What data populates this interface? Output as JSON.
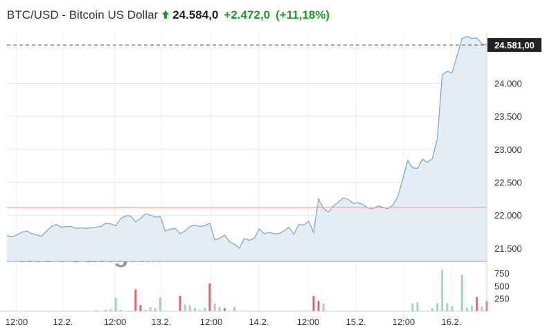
{
  "header": {
    "title": "BTC/USD - Bitcoin US Dollar",
    "last": "24.584,0",
    "change": "+2.472,0",
    "change_pct": "(+11,18%)",
    "direction_icon": "up-arrow-icon"
  },
  "price_marker": "24.581,00",
  "watermark": {
    "brand": "Investing",
    "suffix": ".com"
  },
  "colors": {
    "up": "#1a9d2e",
    "line": "#7fa8c9",
    "area": "#e3edf6",
    "vol_up": "#a6d6b1",
    "vol_down": "#e06767",
    "prev_close": "#f2a8a8"
  },
  "chart_data": {
    "type": "area",
    "y_axis": {
      "ticks": [
        "21.500",
        "22.000",
        "22.500",
        "23.000",
        "23.500",
        "24.000"
      ],
      "ylim": [
        21300,
        24760
      ]
    },
    "prev_close": 22112,
    "last_value": 24581,
    "x_ticks": [
      "12:00",
      "12.2.",
      "12:00",
      "13.2.",
      "12:00",
      "14.2.",
      "12:00",
      "15.2.",
      "12:00",
      "16.2."
    ],
    "price": [
      21690,
      21670,
      21700,
      21740,
      21760,
      21720,
      21700,
      21680,
      21760,
      21830,
      21860,
      21820,
      21830,
      21830,
      21800,
      21810,
      21800,
      21810,
      21820,
      21830,
      21880,
      21870,
      21840,
      21950,
      21990,
      21990,
      21900,
      21950,
      22020,
      22000,
      21970,
      21980,
      21760,
      21790,
      21800,
      21720,
      21760,
      21830,
      21850,
      21830,
      21840,
      21880,
      21630,
      21650,
      21700,
      21600,
      21560,
      21500,
      21650,
      21620,
      21650,
      21790,
      21720,
      21740,
      21720,
      21720,
      21760,
      21820,
      21710,
      21860,
      21850,
      21910,
      21740,
      22250,
      22100,
      22050,
      22140,
      22200,
      22260,
      22240,
      22180,
      22190,
      22160,
      22110,
      22100,
      22140,
      22120,
      22100,
      22150,
      22280,
      22540,
      22830,
      22720,
      22710,
      22850,
      22800,
      22860,
      23160,
      24130,
      24180,
      24160,
      24420,
      24680,
      24710,
      24680,
      24690,
      24600,
      24581
    ],
    "volume_axis": {
      "ticks": [
        "250",
        "500",
        "750"
      ],
      "ylim": [
        0,
        900
      ]
    },
    "volume": [
      0,
      0,
      0,
      0,
      0,
      0,
      0,
      0,
      0,
      0,
      0,
      0,
      0,
      0,
      0,
      0,
      0,
      0,
      20,
      0,
      30,
      40,
      270,
      30,
      0,
      10,
      430,
      120,
      30,
      80,
      60,
      270,
      0,
      0,
      0,
      300,
      130,
      120,
      60,
      30,
      70,
      550,
      150,
      80,
      60,
      0,
      80,
      0,
      0,
      0,
      0,
      0,
      0,
      0,
      0,
      0,
      0,
      0,
      0,
      0,
      0,
      0,
      300,
      200,
      150,
      0,
      0,
      0,
      0,
      0,
      0,
      0,
      0,
      0,
      0,
      0,
      0,
      0,
      0,
      0,
      0,
      0,
      150,
      170,
      0,
      0,
      60,
      150,
      820,
      160,
      100,
      0,
      720,
      70,
      110,
      280,
      90,
      200
    ],
    "volume_down": [
      false,
      false,
      false,
      false,
      false,
      false,
      false,
      false,
      false,
      false,
      false,
      false,
      false,
      false,
      false,
      false,
      false,
      false,
      false,
      false,
      false,
      false,
      false,
      false,
      false,
      false,
      true,
      true,
      false,
      false,
      false,
      false,
      false,
      false,
      false,
      true,
      false,
      false,
      false,
      false,
      false,
      true,
      false,
      false,
      true,
      false,
      false,
      false,
      false,
      false,
      false,
      false,
      false,
      false,
      false,
      false,
      false,
      false,
      false,
      false,
      false,
      false,
      true,
      true,
      false,
      false,
      false,
      false,
      false,
      false,
      false,
      false,
      false,
      false,
      false,
      false,
      false,
      false,
      false,
      false,
      false,
      false,
      false,
      false,
      false,
      false,
      false,
      false,
      false,
      false,
      false,
      false,
      false,
      false,
      false,
      true,
      false,
      true
    ]
  }
}
